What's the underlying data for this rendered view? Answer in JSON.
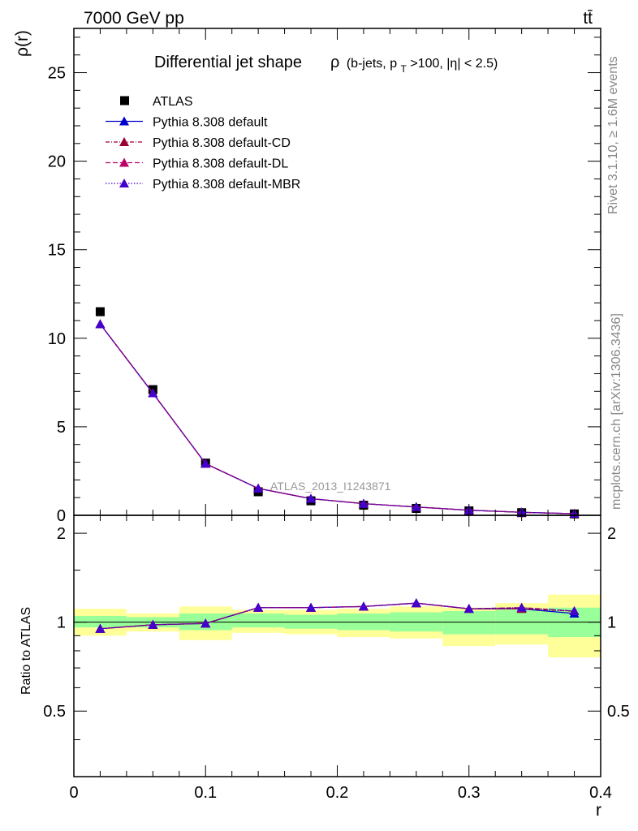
{
  "header": {
    "process": "7000 GeV pp",
    "channel": "tt̄"
  },
  "side_labels": {
    "rivet": "Rivet 3.1.10, ≥ 1.6M events",
    "mcplots": "mcplots.cern.ch [arXiv:1306.3436]"
  },
  "watermark": "ATLAS_2013_I1243871",
  "colors": {
    "data": "#000000",
    "default": "#0000cc",
    "cd": "#990033",
    "dl": "#bb0066",
    "mbr": "#4400cc",
    "band_inner": "#99ff99",
    "band_outer": "#ffff99"
  },
  "chart_data": [
    {
      "type": "line",
      "panel": "main",
      "title": "Differential jet shape",
      "subtitle_parts": {
        "rho": "ρ",
        "pre": "(b-jets, p",
        "sub": "T",
        "post": ">100, |η| < 2.5)"
      },
      "ylabel": "ρ(r)",
      "xlabel": "r",
      "xlim": [
        0,
        0.4
      ],
      "ylim": [
        0,
        27.5
      ],
      "yticks": [
        0,
        5,
        10,
        15,
        20,
        25
      ],
      "x": [
        0.02,
        0.06,
        0.1,
        0.14,
        0.18,
        0.22,
        0.26,
        0.3,
        0.34,
        0.38
      ],
      "series": [
        {
          "name": "ATLAS",
          "key": "data",
          "marker": "square",
          "style": "none",
          "values": [
            11.5,
            7.1,
            2.95,
            1.33,
            0.82,
            0.57,
            0.39,
            0.25,
            0.15,
            0.08
          ]
        },
        {
          "name": "Pythia 8.308 default",
          "key": "default",
          "marker": "triangle",
          "style": "solid",
          "values": [
            10.8,
            6.9,
            2.92,
            1.52,
            0.94,
            0.66,
            0.47,
            0.29,
            0.17,
            0.09
          ]
        },
        {
          "name": "Pythia 8.308 default-CD",
          "key": "cd",
          "marker": "triangle",
          "style": "dashdot",
          "values": [
            10.8,
            6.9,
            2.92,
            1.52,
            0.94,
            0.66,
            0.47,
            0.29,
            0.17,
            0.09
          ]
        },
        {
          "name": "Pythia 8.308 default-DL",
          "key": "dl",
          "marker": "triangle",
          "style": "dashed",
          "values": [
            10.8,
            6.9,
            2.92,
            1.52,
            0.94,
            0.66,
            0.47,
            0.29,
            0.17,
            0.09
          ]
        },
        {
          "name": "Pythia 8.308 default-MBR",
          "key": "mbr",
          "marker": "triangle",
          "style": "dotted",
          "values": [
            10.8,
            6.9,
            2.92,
            1.52,
            0.94,
            0.66,
            0.47,
            0.29,
            0.17,
            0.09
          ]
        }
      ],
      "legend": "top-left"
    },
    {
      "type": "line",
      "panel": "ratio",
      "ylabel": "Ratio to ATLAS",
      "xlabel": "r",
      "xlim": [
        0,
        0.4
      ],
      "ylim": [
        0.3,
        2.3
      ],
      "yticks": [
        0.5,
        1,
        2
      ],
      "ytick_labels": [
        "0.5",
        "1",
        "2"
      ],
      "xticks": [
        0,
        0.1,
        0.2,
        0.3,
        0.4
      ],
      "xtick_labels": [
        "0",
        "0.1",
        "0.2",
        "0.3",
        "0.4"
      ],
      "x": [
        0.02,
        0.06,
        0.1,
        0.14,
        0.18,
        0.22,
        0.26,
        0.3,
        0.34,
        0.38
      ],
      "bin_edges": [
        0,
        0.04,
        0.08,
        0.12,
        0.16,
        0.2,
        0.24,
        0.28,
        0.32,
        0.36,
        0.4
      ],
      "band_inner": {
        "low": [
          0.96,
          0.96,
          0.94,
          0.96,
          0.95,
          0.94,
          0.93,
          0.91,
          0.91,
          0.89
        ],
        "high": [
          1.05,
          1.04,
          1.07,
          1.07,
          1.06,
          1.07,
          1.08,
          1.09,
          1.1,
          1.12
        ]
      },
      "band_outer": {
        "low": [
          0.9,
          0.93,
          0.87,
          0.92,
          0.91,
          0.89,
          0.88,
          0.83,
          0.84,
          0.76
        ],
        "high": [
          1.11,
          1.07,
          1.13,
          1.1,
          1.1,
          1.11,
          1.13,
          1.12,
          1.16,
          1.24
        ]
      },
      "series": [
        {
          "name": "Pythia 8.308 default",
          "key": "default",
          "style": "solid",
          "values": [
            0.95,
            0.98,
            0.99,
            1.12,
            1.12,
            1.13,
            1.16,
            1.11,
            1.11,
            1.07
          ]
        },
        {
          "name": "Pythia 8.308 default-CD",
          "key": "cd",
          "style": "dashdot",
          "values": [
            0.95,
            0.98,
            0.99,
            1.12,
            1.12,
            1.13,
            1.16,
            1.11,
            1.11,
            1.09
          ]
        },
        {
          "name": "Pythia 8.308 default-DL",
          "key": "dl",
          "style": "dashed",
          "values": [
            0.95,
            0.98,
            0.99,
            1.12,
            1.12,
            1.13,
            1.16,
            1.11,
            1.12,
            1.09
          ]
        },
        {
          "name": "Pythia 8.308 default-MBR",
          "key": "mbr",
          "style": "dotted",
          "values": [
            0.95,
            0.98,
            0.99,
            1.12,
            1.12,
            1.13,
            1.16,
            1.11,
            1.12,
            1.09
          ]
        }
      ]
    }
  ]
}
